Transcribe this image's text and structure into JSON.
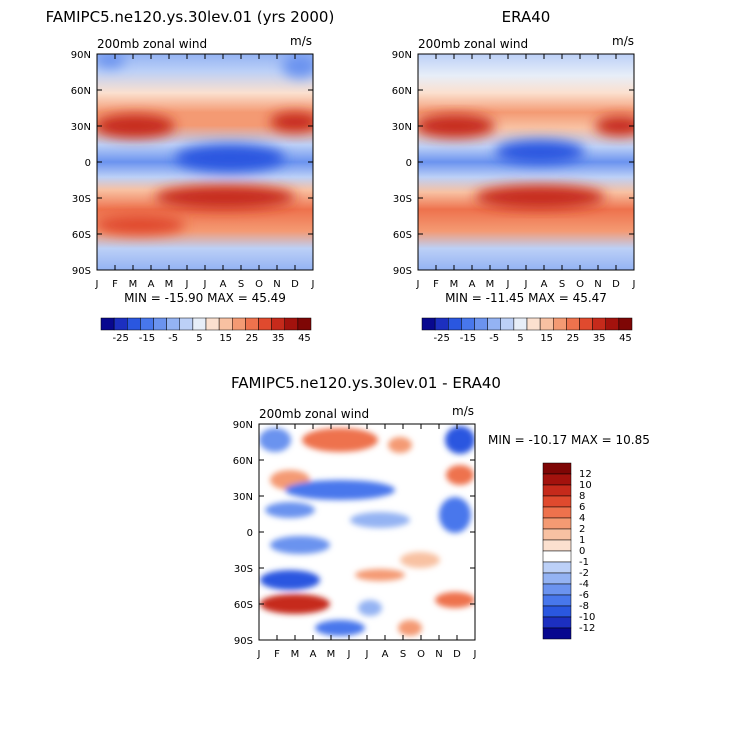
{
  "panel_titles": {
    "model": "FAMIPC5.ne120.ys.30lev.01 (yrs 2000)",
    "obs": "ERA40",
    "diff": "FAMIPC5.ne120.ys.30lev.01 - ERA40"
  },
  "variable_label": "200mb zonal wind",
  "units": "m/s",
  "stats": {
    "model": "MIN = -15.90  MAX =  45.49",
    "obs": "MIN = -11.45  MAX =  45.47",
    "diff": "MIN = -10.17  MAX =  10.85"
  },
  "x_ticks": [
    "J",
    "F",
    "M",
    "A",
    "M",
    "J",
    "J",
    "A",
    "S",
    "O",
    "N",
    "D",
    "J"
  ],
  "y_ticks": [
    "90N",
    "60N",
    "30N",
    "0",
    "30S",
    "60S",
    "90S"
  ],
  "colorbar_main_labels": [
    "-25",
    "-15",
    "-5",
    "5",
    "15",
    "25",
    "35",
    "45"
  ],
  "colorbar_diff_labels": [
    "12",
    "10",
    "8",
    "6",
    "4",
    "2",
    "1",
    "0",
    "-1",
    "-2",
    "-4",
    "-6",
    "-8",
    "-10",
    "-12"
  ],
  "colors": {
    "main_scale": [
      "#08088f",
      "#1c2fc0",
      "#2a57e0",
      "#4877ec",
      "#6b93ef",
      "#94b3f3",
      "#bcd0f7",
      "#e7eef8",
      "#fbe0cf",
      "#f8c1a2",
      "#f49a73",
      "#ee724d",
      "#e04a2e",
      "#c62a1b",
      "#a3120d",
      "#7e0605"
    ],
    "diff_scale": [
      "#7e0605",
      "#a3120d",
      "#c62a1b",
      "#e04a2e",
      "#ee724d",
      "#f49a73",
      "#f8c1a2",
      "#fbe0cf",
      "#ffffff",
      "#bcd0f7",
      "#94b3f3",
      "#6b93ef",
      "#4877ec",
      "#2a57e0",
      "#1c2fc0",
      "#08088f"
    ]
  },
  "chart_data": [
    {
      "type": "heatmap",
      "title": "FAMIPC5.ne120.ys.30lev.01 (yrs 2000)",
      "subtitle": "200mb zonal wind",
      "units": "m/s",
      "x": "months J..J",
      "y": "latitude 90N..90S",
      "min": -15.9,
      "max": 45.49,
      "features": [
        {
          "lat": 30,
          "month": "Jan",
          "value": 40
        },
        {
          "lat": 30,
          "month": "Dec",
          "value": 35
        },
        {
          "lat": -28,
          "month": "Aug",
          "value": 45
        },
        {
          "lat": 3,
          "month": "Jul",
          "value": -15
        }
      ]
    },
    {
      "type": "heatmap",
      "title": "ERA40",
      "subtitle": "200mb zonal wind",
      "units": "m/s",
      "min": -11.45,
      "max": 45.47,
      "features": [
        {
          "lat": 30,
          "month": "Jan",
          "value": 40
        },
        {
          "lat": -30,
          "month": "Jul",
          "value": 40
        },
        {
          "lat": 5,
          "month": "Jul",
          "value": -11
        }
      ]
    },
    {
      "type": "heatmap",
      "title": "FAMIPC5.ne120.ys.30lev.01 - ERA40",
      "subtitle": "200mb zonal wind",
      "units": "m/s",
      "min": -10.17,
      "max": 10.85
    }
  ]
}
